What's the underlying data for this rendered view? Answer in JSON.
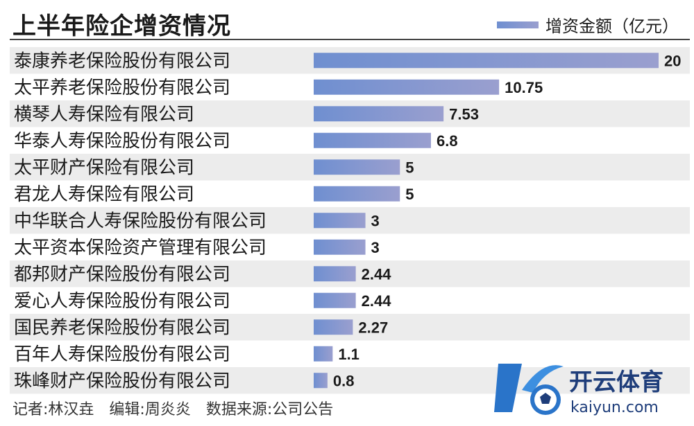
{
  "chart_data": {
    "type": "bar",
    "orientation": "horizontal",
    "title": "上半年险企增资情况",
    "legend": {
      "label": "增资金额（亿元）",
      "position": "top-right"
    },
    "categories": [
      "泰康养老保险股份有限公司",
      "太平养老保险股份有限公司",
      "横琴人寿保险有限公司",
      "华泰人寿保险股份有限公司",
      "太平财产保险有限公司",
      "君龙人寿保险有限公司",
      "中华联合人寿保险股份有限公司",
      "太平资本保险资产管理有限公司",
      "都邦财产保险股份有限公司",
      "爱心人寿保险股份有限公司",
      "国民养老保险股份有限公司",
      "百年人寿保险股份有限公司",
      "珠峰财产保险股份有限公司"
    ],
    "values": [
      20,
      10.75,
      7.53,
      6.8,
      5,
      5,
      3,
      3,
      2.44,
      2.44,
      2.27,
      1.1,
      0.8
    ],
    "value_labels": [
      "20",
      "10.75",
      "7.53",
      "6.8",
      "5",
      "5",
      "3",
      "3",
      "2.44",
      "2.44",
      "2.27",
      "1.1",
      "0.8"
    ],
    "xlim": [
      0,
      20
    ],
    "grid": false,
    "colors": {
      "bar_start": "#6f8fd0",
      "bar_end": "#9a9fcf",
      "stripe": "#ececec"
    }
  },
  "footer": "记者:林汉垚　编辑:周炎炎　数据来源:公司公告",
  "logo": {
    "text_cn": "开云体育",
    "text_en": "kaiyun.com",
    "name": "kaiyun-logo"
  }
}
